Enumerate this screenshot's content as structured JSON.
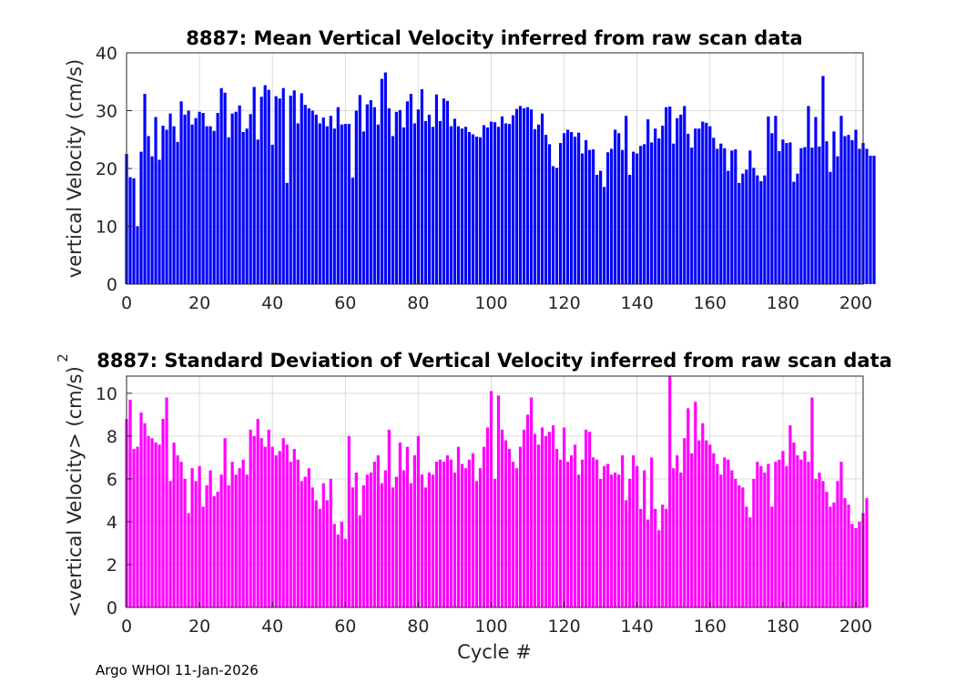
{
  "chart_data": [
    {
      "type": "bar",
      "title": "8887: Mean Vertical Velocity inferred from raw scan data",
      "xlabel": "",
      "ylabel": "vertical Velocity (cm/s)",
      "xlim": [
        0,
        202
      ],
      "ylim": [
        0,
        40
      ],
      "xticks": [
        0,
        20,
        40,
        60,
        80,
        100,
        120,
        140,
        160,
        180,
        200
      ],
      "yticks": [
        0,
        10,
        20,
        30,
        40
      ],
      "grid": true,
      "color": "#0000ff",
      "x_start": 0,
      "values": [
        22.5,
        18.5,
        18.3,
        10.0,
        22.9,
        32.9,
        25.6,
        22.1,
        28.9,
        21.5,
        27.4,
        26.7,
        29.5,
        27.3,
        24.6,
        31.6,
        29.3,
        30.0,
        27.6,
        28.7,
        29.8,
        29.6,
        27.3,
        27.3,
        26.5,
        29.6,
        33.9,
        33.1,
        25.4,
        29.5,
        29.8,
        30.9,
        26.3,
        26.9,
        29.4,
        34.1,
        25.0,
        32.4,
        34.4,
        33.6,
        24.1,
        32.5,
        32.1,
        33.9,
        17.5,
        32.6,
        33.5,
        27.8,
        33.0,
        31.0,
        30.4,
        30.0,
        29.3,
        27.8,
        28.8,
        27.3,
        29.1,
        26.9,
        30.6,
        27.6,
        27.7,
        27.7,
        18.4,
        30.0,
        32.7,
        26.4,
        31.1,
        31.8,
        30.6,
        27.6,
        35.5,
        36.6,
        30.4,
        25.6,
        29.8,
        30.1,
        27.1,
        31.6,
        32.9,
        27.8,
        30.2,
        33.7,
        28.2,
        29.3,
        27.2,
        32.8,
        28.2,
        32.1,
        31.7,
        27.3,
        28.6,
        27.3,
        26.9,
        27.2,
        26.3,
        25.9,
        25.5,
        25.4,
        27.5,
        27.1,
        28.1,
        28.0,
        27.2,
        29.0,
        27.8,
        27.7,
        29.2,
        30.3,
        30.8,
        30.4,
        30.6,
        30.2,
        26.8,
        27.6,
        29.5,
        25.8,
        24.2,
        20.4,
        20.1,
        24.4,
        26.1,
        26.7,
        26.3,
        25.5,
        26.2,
        22.6,
        24.9,
        23.2,
        23.3,
        18.9,
        19.6,
        16.8,
        22.8,
        23.4,
        26.7,
        26.1,
        23.2,
        29.1,
        18.9,
        22.9,
        22.6,
        23.9,
        24.2,
        28.5,
        24.5,
        26.9,
        25.2,
        27.4,
        30.6,
        30.7,
        24.3,
        28.7,
        29.3,
        30.8,
        26.0,
        23.6,
        26.9,
        26.9,
        28.1,
        27.9,
        27.3,
        25.3,
        23.4,
        24.3,
        23.5,
        19.6,
        23.1,
        23.3,
        17.5,
        19.1,
        19.8,
        23.1,
        20.1,
        18.8,
        17.8,
        18.8,
        29.0,
        26.1,
        29.1,
        23.0,
        25.0,
        24.4,
        24.5,
        17.7,
        19.1,
        23.5,
        23.7,
        30.8,
        23.6,
        28.9,
        23.8,
        36.0,
        24.7,
        19.4,
        26.4,
        22.1,
        29.1,
        25.6,
        25.8,
        24.9,
        26.7,
        23.4,
        24.4,
        23.4,
        22.2,
        22.2
      ]
    },
    {
      "type": "bar",
      "title": "8887: Standard Deviation of Vertical Velocity inferred from raw scan data",
      "xlabel": "Cycle #",
      "ylabel": "<vertical Velocity> (cm/s)",
      "ylabel_superscript": "2",
      "xlim": [
        0,
        202
      ],
      "ylim": [
        0,
        10.8
      ],
      "xticks": [
        0,
        20,
        40,
        60,
        80,
        100,
        120,
        140,
        160,
        180,
        200
      ],
      "yticks": [
        0,
        2,
        4,
        6,
        8,
        10
      ],
      "grid": true,
      "color": "#ff00ff",
      "x_start": 0,
      "values": [
        8.8,
        9.7,
        7.4,
        7.5,
        9.1,
        8.6,
        8.0,
        7.9,
        7.7,
        7.6,
        8.8,
        9.8,
        5.9,
        7.7,
        7.1,
        6.8,
        6.0,
        4.4,
        6.5,
        5.9,
        6.6,
        4.7,
        5.7,
        6.4,
        5.2,
        5.4,
        6.2,
        7.9,
        5.7,
        6.8,
        6.2,
        6.5,
        6.9,
        6.2,
        8.3,
        8.0,
        8.8,
        7.9,
        7.5,
        8.3,
        7.5,
        7.1,
        7.3,
        7.9,
        7.6,
        6.8,
        7.4,
        6.9,
        5.9,
        6.1,
        6.5,
        5.6,
        5.0,
        4.6,
        5.8,
        5.0,
        6.0,
        3.9,
        3.4,
        4.0,
        3.2,
        8.0,
        5.6,
        6.3,
        4.3,
        5.7,
        6.2,
        6.3,
        6.8,
        7.1,
        5.8,
        6.4,
        8.3,
        5.6,
        6.1,
        7.7,
        6.4,
        7.5,
        5.8,
        7.1,
        8.0,
        6.2,
        5.6,
        6.3,
        6.2,
        6.8,
        6.9,
        6.8,
        7.1,
        6.9,
        6.3,
        7.5,
        6.7,
        6.5,
        6.9,
        7.2,
        5.9,
        6.5,
        7.5,
        8.4,
        10.1,
        6.0,
        9.9,
        8.3,
        7.8,
        7.4,
        6.8,
        6.5,
        7.5,
        8.3,
        9.0,
        9.8,
        8.1,
        7.6,
        8.4,
        8.0,
        8.2,
        8.5,
        7.4,
        6.9,
        8.4,
        6.8,
        7.1,
        7.6,
        6.2,
        6.9,
        8.3,
        8.2,
        7.0,
        6.9,
        6.0,
        6.6,
        6.7,
        6.2,
        6.3,
        6.2,
        7.1,
        5.0,
        6.0,
        7.1,
        6.6,
        4.6,
        6.4,
        4.1,
        7.0,
        4.6,
        3.6,
        4.8,
        4.6,
        10.8,
        6.5,
        7.1,
        6.3,
        7.9,
        9.3,
        7.2,
        9.6,
        7.8,
        8.6,
        7.8,
        7.6,
        7.2,
        6.7,
        6.2,
        7.0,
        6.9,
        6.4,
        6.0,
        5.7,
        5.6,
        4.7,
        4.2,
        6.0,
        6.8,
        6.6,
        6.3,
        6.7,
        4.7,
        6.8,
        6.9,
        7.3,
        6.6,
        8.5,
        7.7,
        7.1,
        6.9,
        7.3,
        6.8,
        9.8,
        6.0,
        6.3,
        5.9,
        5.4,
        4.7,
        4.9,
        5.9,
        6.8,
        5.1,
        4.8,
        3.9,
        3.7,
        4.0,
        4.4,
        5.1
      ]
    }
  ],
  "footer": "Argo WHOI 11-Jan-2026",
  "top_chart": {
    "title": "8887: Mean Vertical Velocity inferred from raw scan data",
    "ylabel": "vertical Velocity (cm/s)"
  },
  "bottom_chart": {
    "title": "8887: Standard Deviation of Vertical Velocity inferred from raw scan data",
    "ylabel": "<vertical Velocity> (cm/s)",
    "ylabel_superscript": "2",
    "xlabel": "Cycle #"
  }
}
